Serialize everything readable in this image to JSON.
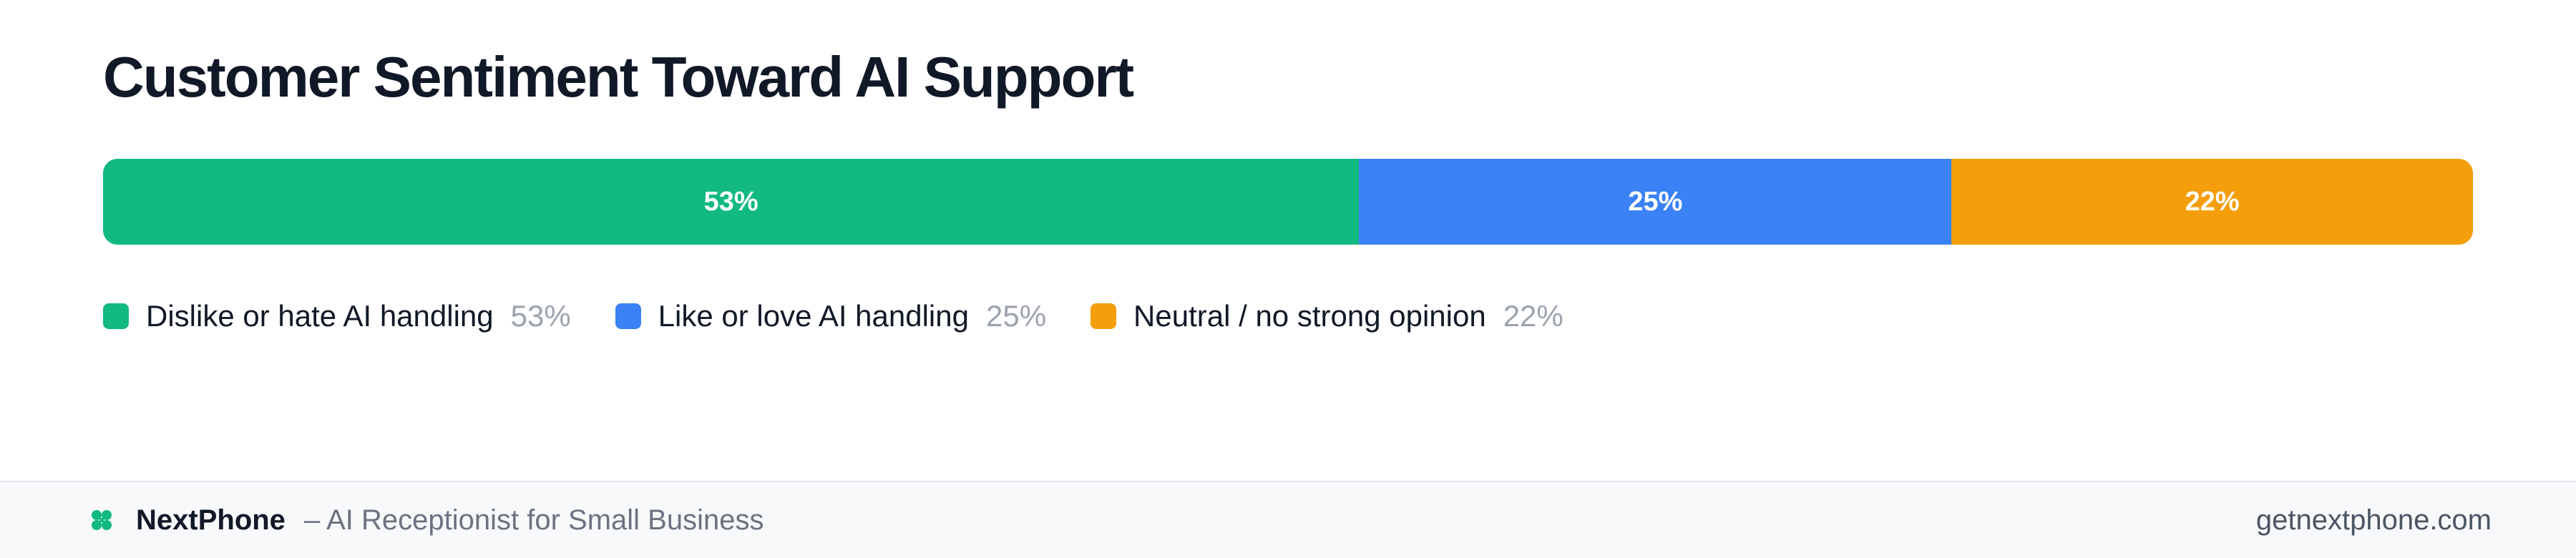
{
  "chart_data": {
    "type": "bar",
    "title": "Customer Sentiment Toward AI Support",
    "orientation": "horizontal-stacked-100",
    "categories": [
      "Dislike or hate AI handling",
      "Like or love AI handling",
      "Neutral / no strong opinion"
    ],
    "values": [
      53,
      25,
      22
    ],
    "value_labels": [
      "53%",
      "25%",
      "22%"
    ],
    "colors": [
      "#12b981",
      "#3b82f6",
      "#f59e0b"
    ],
    "legend": "bottom-left",
    "grid": false
  },
  "footer": {
    "brand": "NextPhone",
    "tagline": "– AI Receptionist for Small Business",
    "website": "getnextphone.com",
    "brand_icon": "clover-icon",
    "brand_color": "#12b981"
  }
}
